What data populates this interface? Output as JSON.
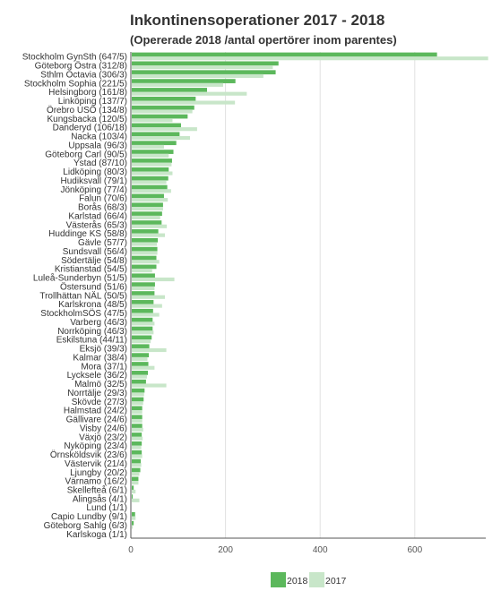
{
  "chart_data": {
    "type": "bar",
    "orientation": "horizontal",
    "title": "Inkontinensoperationer 2017 - 2018",
    "subtitle": "(Opererade 2018 /antal opertörer inom parentes)",
    "categories": [
      "Stockholm GynSth (647/5)",
      "Göteborg Östra (312/8)",
      "Sthlm Octavia (306/3)",
      "Stockholm Sophia (221/5)",
      "Helsingborg (161/8)",
      "Linköping (137/7)",
      "Örebro USÖ (134/8)",
      "Kungsbacka (120/5)",
      "Danderyd (106/18)",
      "Nacka (103/4)",
      "Uppsala (96/3)",
      "Göteborg Carl (90/5)",
      "Ystad (87/10)",
      "Lidköping (80/3)",
      "Hudiksvall (79/1)",
      "Jönköping (77/4)",
      "Falun (70/6)",
      "Borås (68/3)",
      "Karlstad (66/4)",
      "Västerås (65/3)",
      "Huddinge KS (58/8)",
      "Gävle (57/7)",
      "Sundsvall (56/4)",
      "Södertälje (54/8)",
      "Kristianstad (54/5)",
      "Luleå-Sunderbyn (51/5)",
      "Östersund (51/6)",
      "Trollhättan NÄL (50/5)",
      "Karlskrona (48/5)",
      "StockholmSÖS (47/5)",
      "Varberg (46/3)",
      "Norrköping (46/3)",
      "Eskilstuna (44/11)",
      "Eksjö (39/3)",
      "Kalmar (38/4)",
      "Mora (37/1)",
      "Lycksele (36/2)",
      "Malmö (32/5)",
      "Norrtälje (29/3)",
      "Skövde (27/3)",
      "Halmstad (24/2)",
      "Gällivare (24/6)",
      "Visby (24/6)",
      "Växjö (23/2)",
      "Nyköping (23/4)",
      "Örnsköldsvik (23/6)",
      "Västervik (21/4)",
      "Ljungby (20/2)",
      "Värnamo (16/2)",
      "Skellefteå (6/1)",
      "Alingsås (4/1)",
      "Lund (1/1)",
      "Capio Lundby (9/1)",
      "Göteborg Sahlg (6/3)",
      "Karlskoga (1/1)"
    ],
    "series": [
      {
        "name": "2018",
        "color": "#5cb85c",
        "values": [
          647,
          312,
          306,
          221,
          161,
          137,
          134,
          120,
          106,
          103,
          96,
          90,
          87,
          80,
          79,
          77,
          70,
          68,
          66,
          65,
          58,
          57,
          56,
          54,
          54,
          51,
          51,
          50,
          48,
          47,
          46,
          46,
          44,
          39,
          38,
          37,
          36,
          32,
          29,
          27,
          24,
          24,
          24,
          23,
          23,
          23,
          21,
          20,
          16,
          6,
          4,
          1,
          9,
          6,
          1
        ]
      },
      {
        "name": "2017",
        "color": "#c8e6c9",
        "values": [
          755,
          300,
          280,
          195,
          245,
          220,
          130,
          88,
          140,
          125,
          70,
          80,
          86,
          88,
          75,
          85,
          78,
          68,
          62,
          76,
          72,
          55,
          56,
          60,
          45,
          92,
          50,
          72,
          66,
          60,
          50,
          48,
          42,
          75,
          35,
          50,
          34,
          75,
          28,
          26,
          24,
          24,
          26,
          25,
          22,
          24,
          22,
          18,
          16,
          10,
          18,
          0,
          10,
          4,
          0
        ]
      }
    ],
    "xlim": [
      0,
      750
    ],
    "xticks": [
      0,
      200,
      400,
      600
    ],
    "grid": true,
    "legend": "bottom"
  }
}
